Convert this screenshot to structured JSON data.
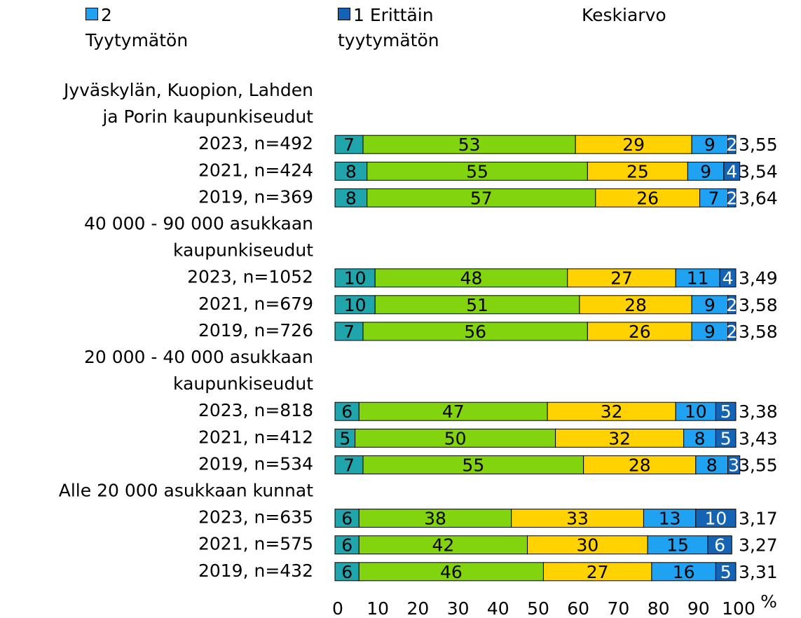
{
  "chart_data": {
    "type": "bar",
    "orientation": "horizontal",
    "stacked": true,
    "categories": [
      "Jyväskylän, Kuopion, Lahden",
      "ja Porin kaupunkiseudut",
      "2023, n=492",
      "2021, n=424",
      "2019, n=369",
      "40 000 - 90 000 asukkaan",
      "kaupunkiseudut",
      "2023, n=1052",
      "2021, n=679",
      "2019, n=726",
      "20 000 - 40 000 asukkaan",
      "kaupunkiseudut",
      "2023, n=818",
      "2021, n=412",
      "2019, n=534",
      "Alle 20 000 asukkaan kunnat",
      "2023, n=635",
      "2021, n=575",
      "2019, n=432"
    ],
    "series": [
      {
        "color": "#1fa5ab",
        "values": [
          null,
          null,
          7,
          8,
          8,
          null,
          null,
          10,
          10,
          7,
          null,
          null,
          6,
          5,
          7,
          null,
          6,
          6,
          6
        ]
      },
      {
        "color": "#82d40f",
        "values": [
          null,
          null,
          53,
          55,
          57,
          null,
          null,
          48,
          51,
          56,
          null,
          null,
          47,
          50,
          55,
          null,
          38,
          42,
          46
        ]
      },
      {
        "color": "#ffd200",
        "values": [
          null,
          null,
          29,
          25,
          26,
          null,
          null,
          27,
          28,
          26,
          null,
          null,
          32,
          32,
          28,
          null,
          33,
          30,
          27
        ]
      },
      {
        "name": "2 Tyytymätön",
        "color": "#1fa2f2",
        "values": [
          null,
          null,
          9,
          9,
          7,
          null,
          null,
          11,
          9,
          9,
          null,
          null,
          10,
          8,
          8,
          null,
          13,
          15,
          16
        ]
      },
      {
        "name": "1 Erittäin tyytymätön",
        "color": "#1463b4",
        "label_color": "#ffffff",
        "values": [
          null,
          null,
          2,
          4,
          2,
          null,
          null,
          4,
          2,
          2,
          null,
          null,
          5,
          5,
          3,
          null,
          10,
          6,
          5
        ]
      }
    ],
    "mean_label": "Keskiarvo",
    "means": [
      null,
      null,
      3.55,
      3.54,
      3.64,
      null,
      null,
      3.49,
      3.58,
      3.58,
      null,
      null,
      3.38,
      3.43,
      3.55,
      null,
      3.17,
      3.27,
      3.31
    ],
    "mean_labels": [
      null,
      null,
      "3,55",
      "3,54",
      "3,64",
      null,
      null,
      "3,49",
      "3,58",
      "3,58",
      null,
      null,
      "3,38",
      "3,43",
      "3,55",
      null,
      "3,17",
      "3,27",
      "3,31"
    ],
    "xlim": [
      0,
      100
    ],
    "xticks": [
      0,
      10,
      20,
      30,
      40,
      50,
      60,
      70,
      80,
      90,
      100
    ],
    "xlabel": "%"
  }
}
